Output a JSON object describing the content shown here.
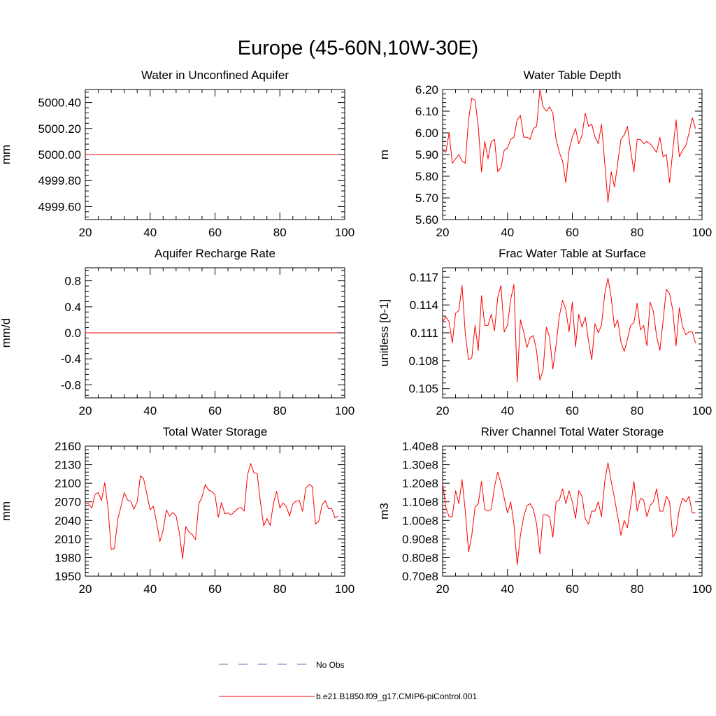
{
  "title": "Europe (45-60N,10W-30E)",
  "colors": {
    "model": "#ff0000",
    "obs": "#6a6ab4",
    "axis": "#000000"
  },
  "legend": {
    "obs_label": "No Obs",
    "model_label": "b.e21.B1850.f09_g17.CMIP6-piControl.001"
  },
  "chart_data": [
    {
      "type": "line",
      "title": "Water in Unconfined Aquifer",
      "xlabel": "",
      "ylabel": "mm",
      "xlim": [
        20,
        100
      ],
      "ylim": [
        4999.5,
        5000.5
      ],
      "xticks": [
        20,
        40,
        60,
        80,
        100
      ],
      "xtick_labels": [
        "20",
        "40",
        "60",
        "80",
        "100"
      ],
      "yticks": [
        4999.6,
        4999.8,
        5000.0,
        5000.2,
        5000.4
      ],
      "ytick_labels": [
        "4999.60",
        "4999.80",
        "5000.00",
        "5000.20",
        "5000.40"
      ],
      "x_start": 20,
      "series": [
        {
          "name": "b.e21.B1850.f09_g17.CMIP6-piControl.001",
          "values": [
            5000,
            5000,
            5000,
            5000,
            5000,
            5000,
            5000,
            5000,
            5000,
            5000,
            5000,
            5000,
            5000,
            5000,
            5000,
            5000,
            5000,
            5000,
            5000,
            5000,
            5000,
            5000,
            5000,
            5000,
            5000,
            5000,
            5000,
            5000,
            5000,
            5000,
            5000,
            5000,
            5000,
            5000,
            5000,
            5000,
            5000,
            5000,
            5000,
            5000,
            5000,
            5000,
            5000,
            5000,
            5000,
            5000,
            5000,
            5000,
            5000,
            5000,
            5000,
            5000,
            5000,
            5000,
            5000,
            5000,
            5000,
            5000,
            5000,
            5000,
            5000,
            5000,
            5000,
            5000,
            5000,
            5000,
            5000,
            5000,
            5000,
            5000,
            5000,
            5000,
            5000,
            5000,
            5000,
            5000,
            5000,
            5000,
            5000
          ]
        }
      ]
    },
    {
      "type": "line",
      "title": "Water Table Depth",
      "xlabel": "",
      "ylabel": "m",
      "xlim": [
        20,
        100
      ],
      "ylim": [
        5.6,
        6.2
      ],
      "xticks": [
        20,
        40,
        60,
        80,
        100
      ],
      "xtick_labels": [
        "20",
        "40",
        "60",
        "80",
        "100"
      ],
      "yticks": [
        5.6,
        5.7,
        5.8,
        5.9,
        6.0,
        6.1,
        6.2
      ],
      "ytick_labels": [
        "5.60",
        "5.70",
        "5.80",
        "5.90",
        "6.00",
        "6.10",
        "6.20"
      ],
      "x_start": 20,
      "series": [
        {
          "name": "b.e21.B1850.f09_g17.CMIP6-piControl.001",
          "values": [
            5.92,
            5.91,
            6.0,
            5.86,
            5.88,
            5.9,
            5.87,
            5.86,
            6.06,
            6.16,
            6.15,
            6.03,
            5.82,
            5.96,
            5.88,
            5.96,
            5.97,
            5.82,
            5.84,
            5.92,
            5.93,
            5.97,
            5.98,
            6.06,
            6.08,
            5.98,
            5.98,
            5.97,
            6.02,
            6.03,
            6.2,
            6.12,
            6.1,
            6.12,
            6.09,
            5.97,
            5.91,
            5.87,
            5.77,
            5.92,
            5.98,
            6.02,
            5.95,
            5.99,
            6.09,
            6.03,
            6.04,
            5.98,
            5.95,
            6.04,
            5.86,
            5.68,
            5.82,
            5.75,
            5.86,
            5.97,
            5.99,
            6.03,
            5.92,
            5.82,
            5.97,
            5.97,
            5.95,
            5.96,
            5.95,
            5.93,
            5.91,
            5.98,
            5.89,
            5.9,
            5.77,
            5.92,
            6.06,
            5.89,
            5.92,
            5.94,
            6.0,
            6.07,
            6.02
          ]
        }
      ]
    },
    {
      "type": "line",
      "title": "Aquifer Recharge Rate",
      "xlabel": "",
      "ylabel": "mm/d",
      "xlim": [
        20,
        100
      ],
      "ylim": [
        -1.0,
        1.0
      ],
      "xticks": [
        20,
        40,
        60,
        80,
        100
      ],
      "xtick_labels": [
        "20",
        "40",
        "60",
        "80",
        "100"
      ],
      "yticks": [
        -0.8,
        -0.4,
        0.0,
        0.4,
        0.8
      ],
      "ytick_labels": [
        "-0.8",
        "-0.4",
        "0.0",
        "0.4",
        "0.8"
      ],
      "x_start": 20,
      "series": [
        {
          "name": "b.e21.B1850.f09_g17.CMIP6-piControl.001",
          "values": [
            0,
            0,
            0,
            0,
            0,
            0,
            0,
            0,
            0,
            0,
            0,
            0,
            0,
            0,
            0,
            0,
            0,
            0,
            0,
            0,
            0,
            0,
            0,
            0,
            0,
            0,
            0,
            0,
            0,
            0,
            0,
            0,
            0,
            0,
            0,
            0,
            0,
            0,
            0,
            0,
            0,
            0,
            0,
            0,
            0,
            0,
            0,
            0,
            0,
            0,
            0,
            0,
            0,
            0,
            0,
            0,
            0,
            0,
            0,
            0,
            0,
            0,
            0,
            0,
            0,
            0,
            0,
            0,
            0,
            0,
            0,
            0,
            0,
            0,
            0,
            0,
            0,
            0,
            0
          ]
        }
      ]
    },
    {
      "type": "line",
      "title": "Frac Water Table at Surface",
      "xlabel": "",
      "ylabel": "unitless [0-1]",
      "xlim": [
        20,
        100
      ],
      "ylim": [
        0.104,
        0.118
      ],
      "xticks": [
        20,
        40,
        60,
        80,
        100
      ],
      "xtick_labels": [
        "20",
        "40",
        "60",
        "80",
        "100"
      ],
      "yticks": [
        0.105,
        0.108,
        0.111,
        0.114,
        0.117
      ],
      "ytick_labels": [
        "0.105",
        "0.108",
        "0.111",
        "0.114",
        "0.117"
      ],
      "x_start": 20,
      "series": [
        {
          "name": "b.e21.B1850.f09_g17.CMIP6-piControl.001",
          "values": [
            0.1122,
            0.1127,
            0.1122,
            0.1099,
            0.1131,
            0.1134,
            0.1161,
            0.1109,
            0.1081,
            0.1083,
            0.1118,
            0.1091,
            0.115,
            0.1118,
            0.1118,
            0.113,
            0.1112,
            0.1148,
            0.1161,
            0.1111,
            0.1118,
            0.1146,
            0.1162,
            0.1057,
            0.1124,
            0.1111,
            0.1094,
            0.1105,
            0.1107,
            0.109,
            0.1059,
            0.107,
            0.1116,
            0.1105,
            0.1071,
            0.1097,
            0.1128,
            0.1145,
            0.1135,
            0.1111,
            0.1143,
            0.1095,
            0.113,
            0.1116,
            0.1127,
            0.1101,
            0.1081,
            0.112,
            0.111,
            0.1118,
            0.1152,
            0.1169,
            0.1148,
            0.1116,
            0.1124,
            0.11,
            0.109,
            0.1103,
            0.1118,
            0.1121,
            0.1142,
            0.1113,
            0.1118,
            0.1096,
            0.1143,
            0.1133,
            0.1106,
            0.1091,
            0.1123,
            0.1157,
            0.1152,
            0.1134,
            0.1096,
            0.1137,
            0.1117,
            0.1108,
            0.1111,
            0.1111,
            0.1099
          ]
        }
      ]
    },
    {
      "type": "line",
      "title": "Total Water Storage",
      "xlabel": "",
      "ylabel": "mm",
      "xlim": [
        20,
        100
      ],
      "ylim": [
        1950,
        2160
      ],
      "xticks": [
        20,
        40,
        60,
        80,
        100
      ],
      "xtick_labels": [
        "20",
        "40",
        "60",
        "80",
        "100"
      ],
      "yticks": [
        1950,
        1980,
        2010,
        2040,
        2070,
        2100,
        2130,
        2160
      ],
      "ytick_labels": [
        "1950",
        "1980",
        "2010",
        "2040",
        "2070",
        "2100",
        "2130",
        "2160"
      ],
      "x_start": 20,
      "series": [
        {
          "name": "b.e21.B1850.f09_g17.CMIP6-piControl.001",
          "values": [
            2068,
            2067,
            2060,
            2082,
            2085,
            2072,
            2101,
            2060,
            1993,
            1995,
            2042,
            2062,
            2085,
            2073,
            2071,
            2058,
            2070,
            2112,
            2107,
            2082,
            2057,
            2063,
            2036,
            2006,
            2024,
            2057,
            2047,
            2053,
            2047,
            2020,
            1978,
            2030,
            2021,
            2017,
            2009,
            2067,
            2078,
            2098,
            2089,
            2087,
            2081,
            2045,
            2069,
            2051,
            2052,
            2049,
            2054,
            2059,
            2061,
            2055,
            2113,
            2132,
            2117,
            2116,
            2070,
            2031,
            2043,
            2032,
            2067,
            2087,
            2060,
            2068,
            2062,
            2047,
            2067,
            2071,
            2072,
            2055,
            2092,
            2098,
            2095,
            2034,
            2039,
            2065,
            2072,
            2059,
            2059,
            2044,
            2047
          ]
        }
      ]
    },
    {
      "type": "line",
      "title": "River Channel Total Water Storage",
      "xlabel": "",
      "ylabel": "m3",
      "xlim": [
        20,
        100
      ],
      "ylim": [
        0.7,
        1.4
      ],
      "y_unit": "1e8",
      "xticks": [
        20,
        40,
        60,
        80,
        100
      ],
      "xtick_labels": [
        "20",
        "40",
        "60",
        "80",
        "100"
      ],
      "yticks": [
        0.7,
        0.8,
        0.9,
        1.0,
        1.1,
        1.2,
        1.3,
        1.4
      ],
      "ytick_labels": [
        "0.70e8",
        "0.80e8",
        "0.90e8",
        "1.00e8",
        "1.10e8",
        "1.20e8",
        "1.30e8",
        "1.40e8"
      ],
      "x_start": 20,
      "series": [
        {
          "name": "b.e21.B1850.f09_g17.CMIP6-piControl.001",
          "values": [
            1.2,
            1.07,
            1.02,
            1.02,
            1.16,
            1.09,
            1.22,
            1.05,
            0.83,
            0.92,
            1.07,
            1.09,
            1.21,
            1.06,
            1.05,
            1.06,
            1.18,
            1.26,
            1.2,
            1.12,
            1.04,
            1.1,
            0.98,
            0.76,
            0.92,
            1.02,
            1.08,
            1.09,
            1.06,
            0.98,
            0.82,
            1.03,
            1.03,
            1.02,
            0.91,
            1.1,
            1.11,
            1.17,
            1.09,
            1.16,
            1.1,
            1.01,
            1.16,
            1.13,
            1.01,
            0.98,
            1.05,
            1.05,
            1.1,
            1.02,
            1.21,
            1.31,
            1.21,
            1.12,
            1.02,
            0.92,
            1.0,
            0.96,
            1.08,
            1.21,
            1.05,
            1.12,
            1.11,
            1.02,
            1.08,
            1.1,
            1.17,
            1.05,
            1.05,
            1.13,
            1.1,
            0.91,
            0.94,
            1.06,
            1.12,
            1.1,
            1.13,
            1.04,
            1.04
          ]
        }
      ]
    }
  ]
}
